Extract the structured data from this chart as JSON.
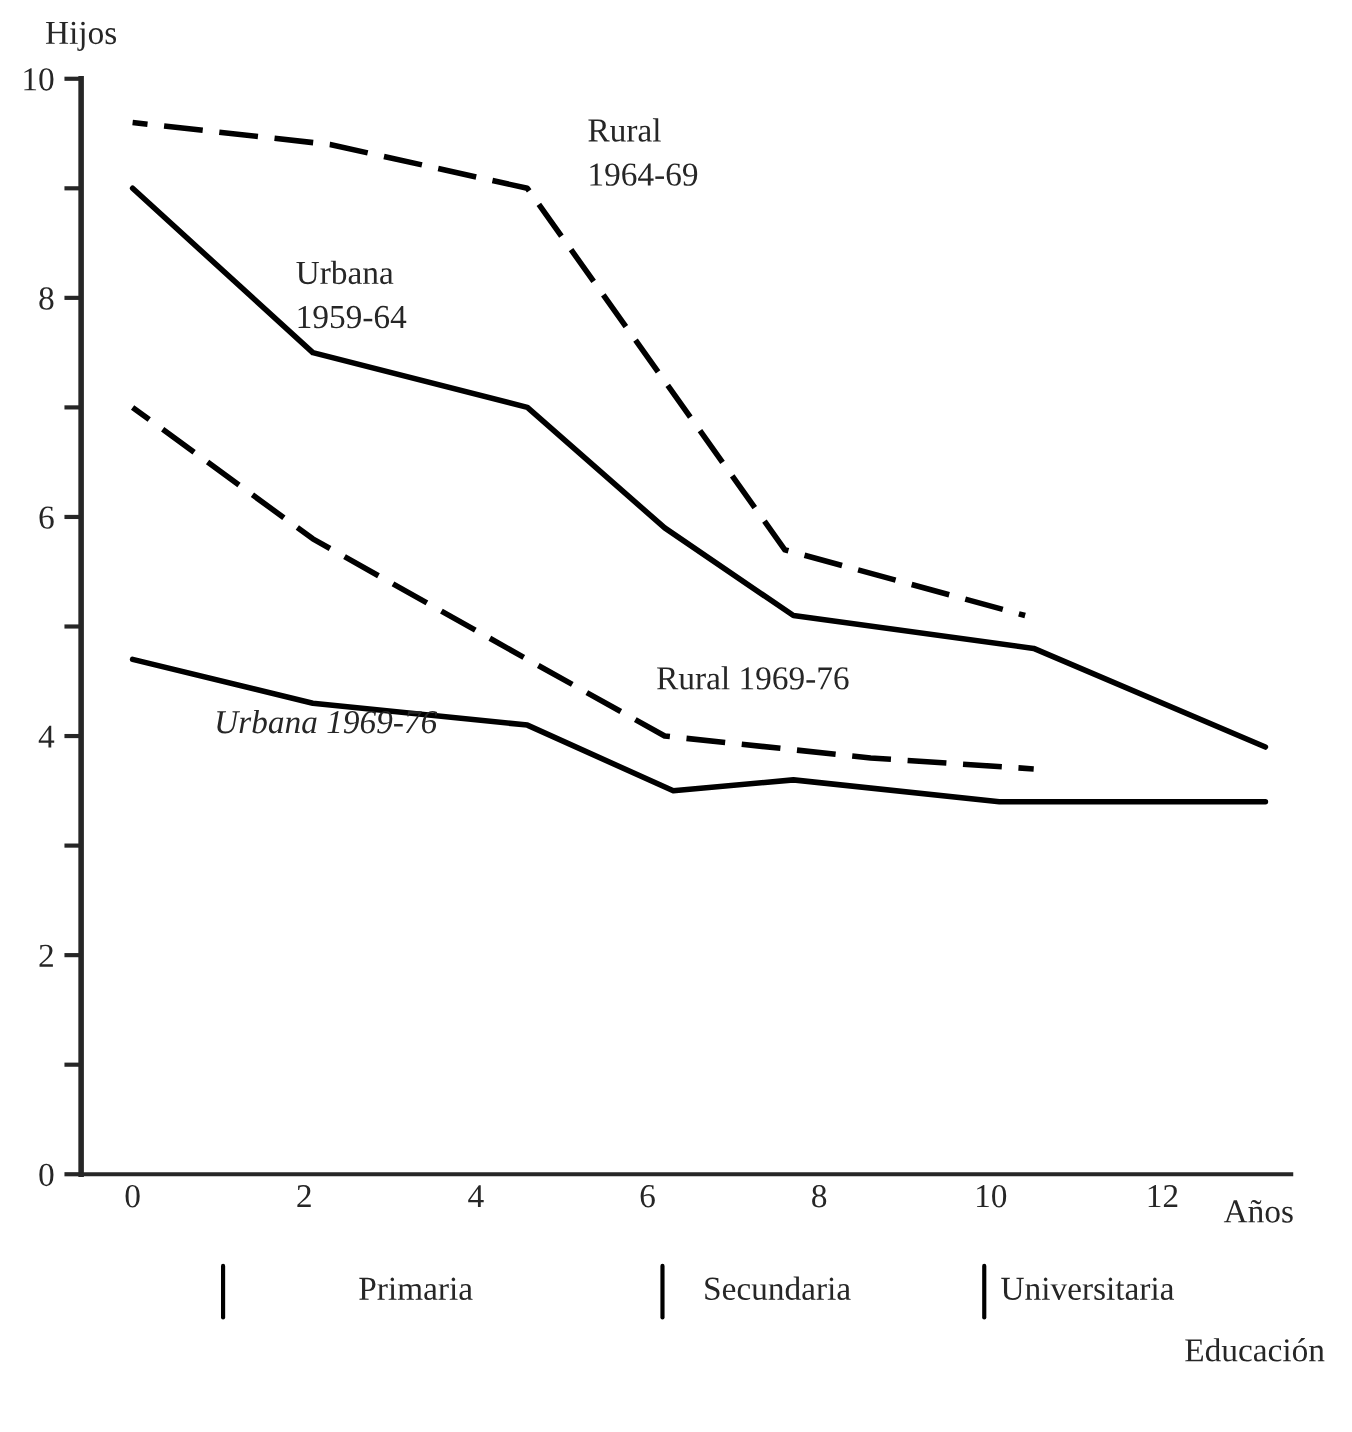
{
  "chart_data": {
    "type": "line",
    "ylabel": "Hijos",
    "xlabel": "Años",
    "xlim": [
      -0.6,
      13.5
    ],
    "xticks": [
      0,
      2,
      4,
      6,
      8,
      10,
      12
    ],
    "ylim": [
      0,
      10
    ],
    "yticks": [
      0,
      {
        "value": 1,
        "label": null
      },
      2,
      {
        "value": 3,
        "label": null
      },
      4,
      {
        "value": 5,
        "label": null
      },
      6,
      {
        "value": 7,
        "label": null
      },
      8,
      {
        "value": 9,
        "label": null
      },
      10
    ],
    "grid": false,
    "legend": false,
    "marker": "none",
    "series": [
      {
        "name": "Rural 1964-69",
        "color": "#000000",
        "line_style": "dashed",
        "x": [
          0,
          2.3,
          4.6,
          7.6,
          10.4
        ],
        "values": [
          9.6,
          9.4,
          9.0,
          5.7,
          5.1
        ]
      },
      {
        "name": "Urbana 1959-64",
        "color": "#000000",
        "line_style": "solid",
        "x": [
          0,
          2.1,
          4.6,
          6.2,
          7.7,
          10.5,
          13.2
        ],
        "values": [
          9.0,
          7.5,
          7.0,
          5.9,
          5.1,
          4.8,
          3.9
        ]
      },
      {
        "name": "Rural 1969-76",
        "color": "#000000",
        "line_style": "dashed",
        "x": [
          0,
          2.1,
          4.6,
          6.2,
          8.6,
          10.5
        ],
        "values": [
          7.0,
          5.8,
          4.7,
          4.0,
          3.8,
          3.7
        ]
      },
      {
        "name": "Urbana 1969-76",
        "color": "#000000",
        "line_style": "solid",
        "x": [
          0,
          2.1,
          4.6,
          6.3,
          7.7,
          10.1,
          13.2
        ],
        "values": [
          4.7,
          4.3,
          4.1,
          3.5,
          3.6,
          3.4,
          3.4
        ]
      }
    ],
    "annotations": [
      "Primaria",
      "Secundaria",
      "Universitaria",
      "Educación"
    ]
  }
}
